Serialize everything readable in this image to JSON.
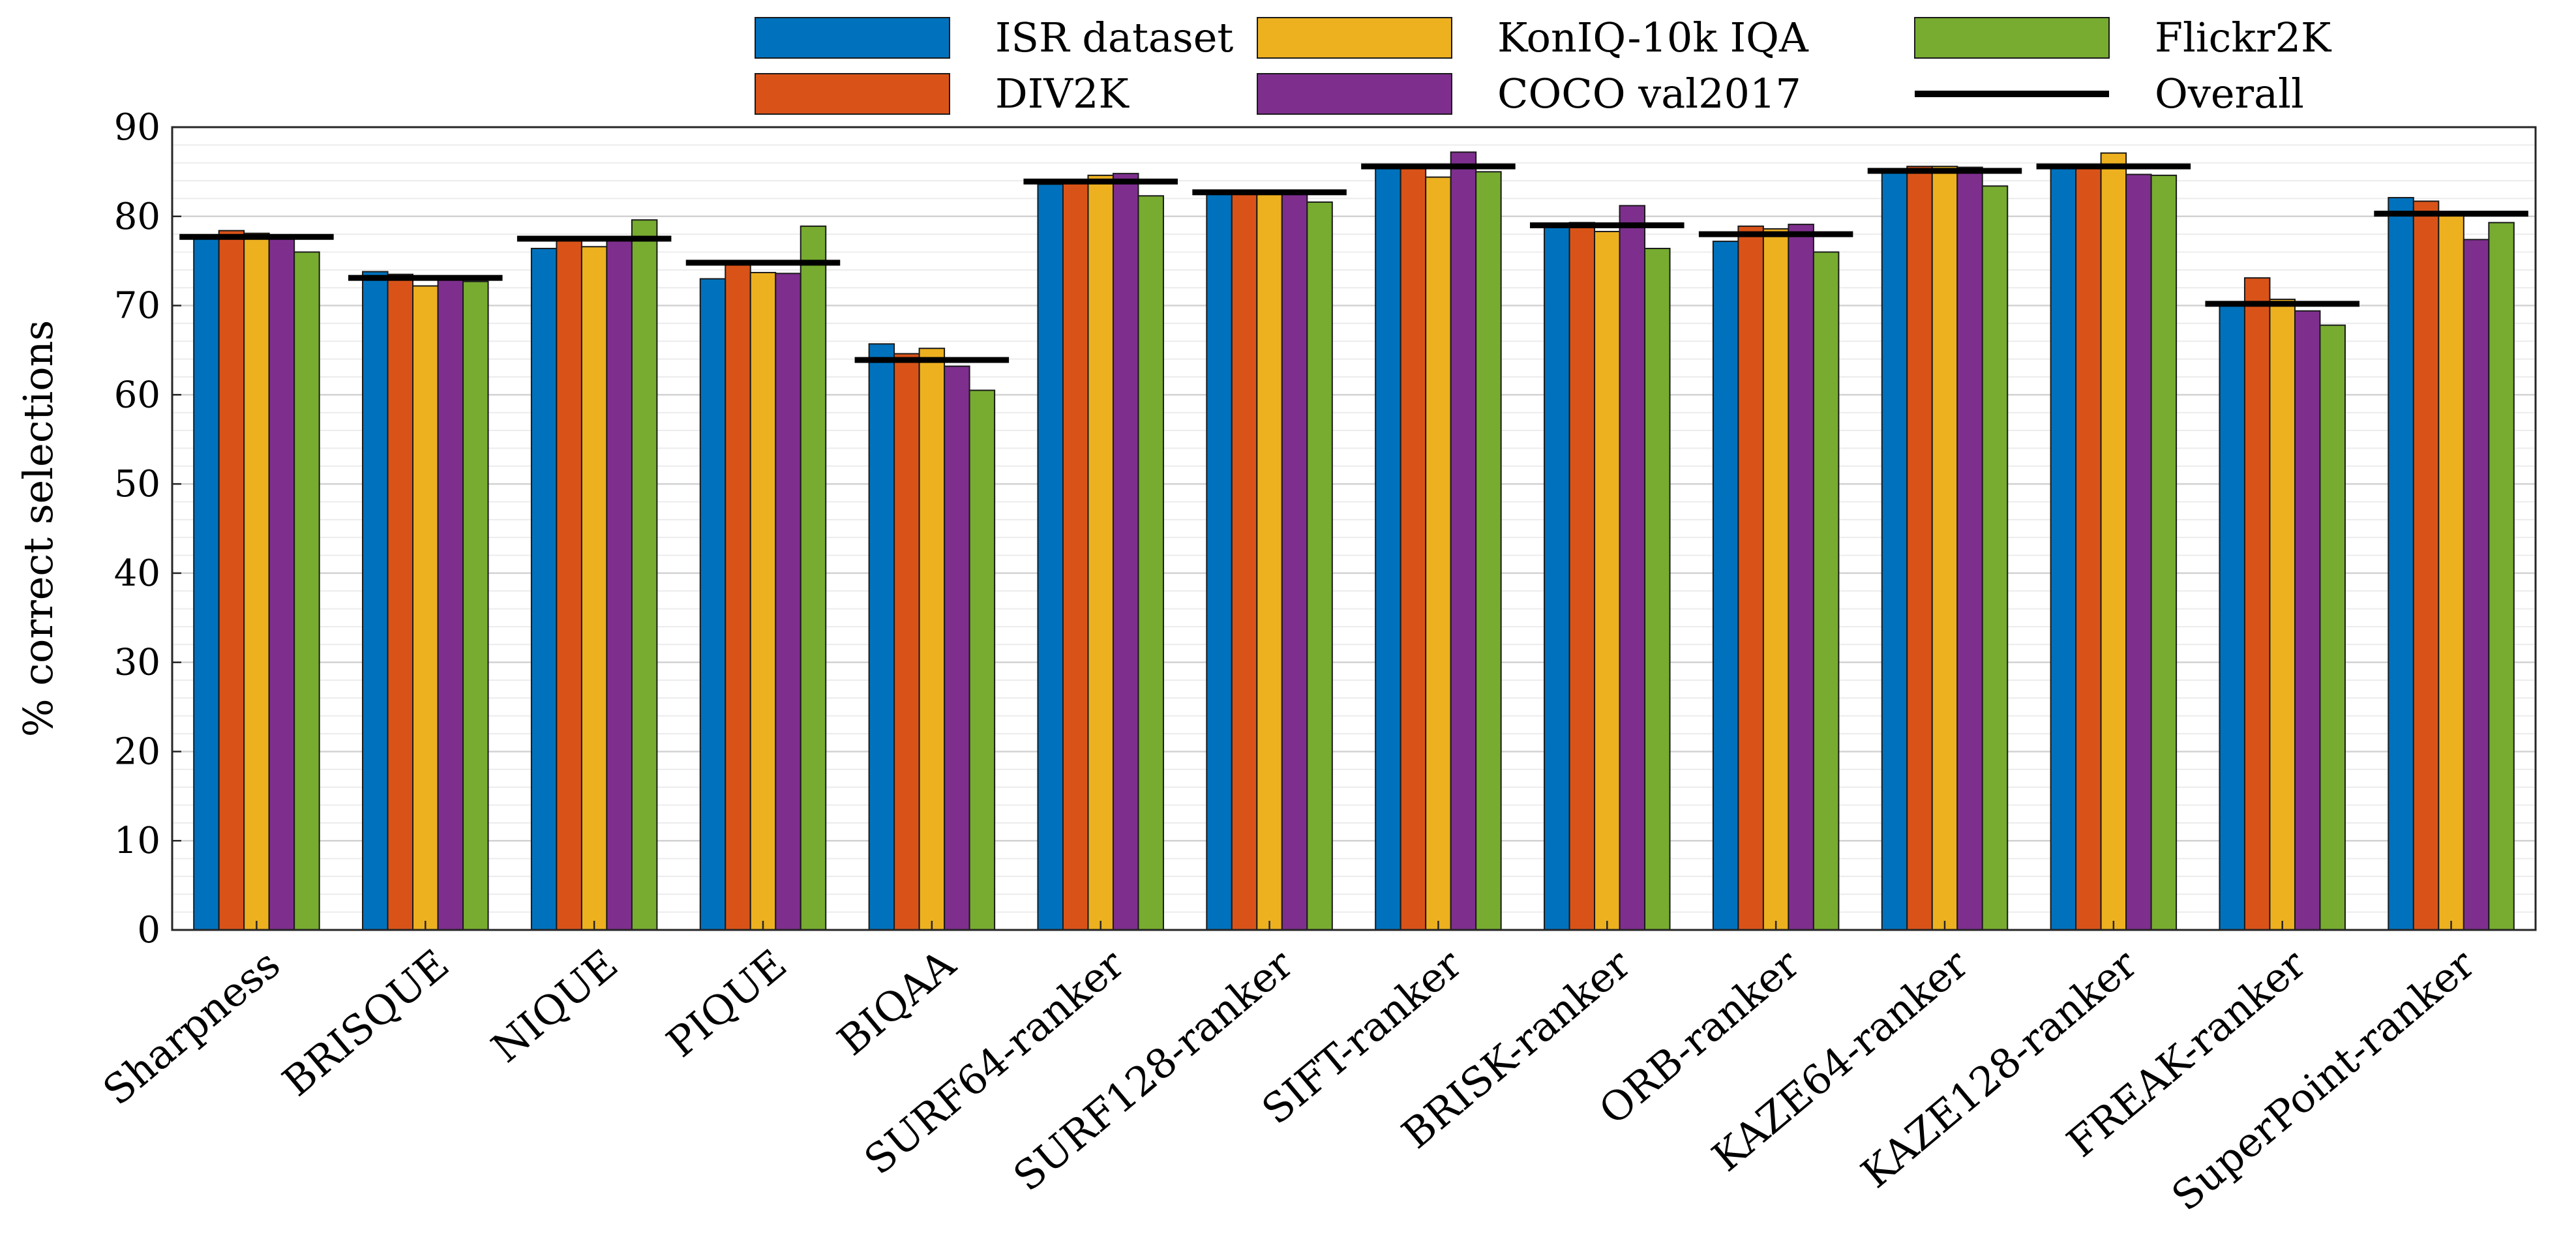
{
  "chart_data": {
    "type": "bar",
    "title": "",
    "xlabel": "",
    "ylabel": "% correct selections",
    "ylim": [
      0,
      90
    ],
    "yticks": [
      0,
      10,
      20,
      30,
      40,
      50,
      60,
      70,
      80,
      90
    ],
    "grid": true,
    "legend_position": "top",
    "categories": [
      "Sharpness",
      "BRISQUE",
      "NIQUE",
      "PIQUE",
      "BIQAA",
      "SURF64-ranker",
      "SURF128-ranker",
      "SIFT-ranker",
      "BRISK-ranker",
      "ORB-ranker",
      "KAZE64-ranker",
      "KAZE128-ranker",
      "FREAK-ranker",
      "SuperPoint-ranker"
    ],
    "series": [
      {
        "name": "ISR dataset",
        "color": "#0072BD",
        "values": [
          77.6,
          73.8,
          76.4,
          73.0,
          65.7,
          83.6,
          82.5,
          85.6,
          78.8,
          77.2,
          85.0,
          85.6,
          70.2,
          82.1
        ]
      },
      {
        "name": "DIV2K",
        "color": "#D95319",
        "values": [
          78.4,
          73.5,
          77.4,
          74.8,
          64.6,
          83.8,
          82.5,
          85.6,
          79.3,
          78.9,
          85.6,
          85.6,
          73.1,
          81.7
        ]
      },
      {
        "name": "KonIQ-10k IQA",
        "color": "#EDB120",
        "values": [
          78.1,
          72.2,
          76.6,
          73.7,
          65.2,
          84.6,
          82.5,
          84.4,
          78.3,
          78.6,
          85.6,
          87.1,
          70.7,
          80.4
        ]
      },
      {
        "name": "COCO val2017",
        "color": "#7E2F8E",
        "values": [
          77.5,
          73.3,
          77.3,
          73.6,
          63.2,
          84.8,
          82.8,
          87.2,
          81.2,
          79.1,
          85.5,
          84.7,
          69.4,
          77.4
        ]
      },
      {
        "name": "Flickr2K",
        "color": "#77AC30",
        "values": [
          76.0,
          72.7,
          79.6,
          78.9,
          60.5,
          82.3,
          81.6,
          85.0,
          76.4,
          76.0,
          83.4,
          84.6,
          67.8,
          79.3
        ]
      }
    ],
    "overall": {
      "name": "Overall",
      "color": "#000000",
      "values": [
        77.7,
        73.1,
        77.5,
        74.8,
        63.9,
        83.9,
        82.7,
        85.6,
        79.0,
        78.0,
        85.1,
        85.6,
        70.2,
        80.3
      ]
    }
  }
}
